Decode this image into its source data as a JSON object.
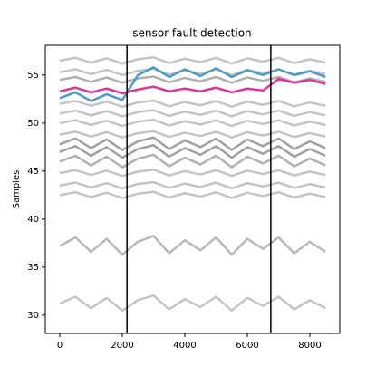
{
  "chart_data": {
    "type": "line",
    "title": "sensor fault detection",
    "y_label": "Samples",
    "x": [
      0,
      500,
      1000,
      1500,
      2000,
      2500,
      3000,
      3500,
      4000,
      4500,
      5000,
      5500,
      6000,
      6500,
      7000,
      7500,
      8000,
      8500
    ],
    "series": [
      {
        "color": "#c4c4c4",
        "values": [
          56.5,
          56.8,
          56.3,
          56.75,
          56.2,
          56.65,
          56.85,
          56.25,
          56.7,
          56.35,
          56.8,
          56.2,
          56.75,
          56.4,
          56.8,
          56.25,
          56.65,
          56.3
        ]
      },
      {
        "color": "#c4c4c4",
        "values": [
          55.3,
          55.6,
          55.1,
          55.55,
          55.0,
          55.45,
          55.65,
          55.05,
          55.5,
          55.15,
          55.6,
          55.0,
          55.55,
          55.2,
          55.6,
          55.05,
          55.45,
          55.1
        ]
      },
      {
        "color": "#b0b0b0",
        "values": [
          54.5,
          54.8,
          54.3,
          54.75,
          54.2,
          54.65,
          54.85,
          54.25,
          54.7,
          54.35,
          54.8,
          54.2,
          54.75,
          54.4,
          54.8,
          54.25,
          54.65,
          54.3
        ]
      },
      {
        "color": "#c4c4c4",
        "values": [
          52.0,
          52.3,
          51.8,
          52.25,
          51.7,
          52.15,
          52.35,
          51.75,
          52.2,
          51.85,
          52.3,
          51.7,
          52.25,
          51.9,
          52.3,
          51.75,
          52.15,
          51.8
        ]
      },
      {
        "color": "#c4c4c4",
        "values": [
          51.0,
          51.3,
          50.8,
          51.25,
          50.7,
          51.15,
          51.35,
          50.75,
          51.2,
          50.85,
          51.3,
          50.7,
          51.25,
          50.9,
          51.3,
          50.75,
          51.15,
          50.8
        ]
      },
      {
        "color": "#c4c4c4",
        "values": [
          50.0,
          50.3,
          49.8,
          50.25,
          49.7,
          50.15,
          50.35,
          49.75,
          50.2,
          49.85,
          50.3,
          49.7,
          50.25,
          49.9,
          50.3,
          49.75,
          50.15,
          49.8
        ]
      },
      {
        "color": "#c4c4c4",
        "values": [
          48.8,
          49.1,
          48.6,
          49.05,
          48.5,
          48.95,
          49.15,
          48.55,
          49.0,
          48.65,
          49.1,
          48.5,
          49.05,
          48.7,
          49.1,
          48.55,
          48.95,
          48.6
        ]
      },
      {
        "color": "#a0a0a0",
        "values": [
          47.8,
          48.4,
          47.4,
          48.3,
          47.2,
          48.1,
          48.5,
          47.3,
          48.2,
          47.5,
          48.4,
          47.2,
          48.3,
          47.6,
          48.4,
          47.3,
          48.1,
          47.4
        ]
      },
      {
        "color": "#a0a0a0",
        "values": [
          47.0,
          47.6,
          46.6,
          47.5,
          46.4,
          47.3,
          47.7,
          46.5,
          47.4,
          46.7,
          47.6,
          46.4,
          47.5,
          46.8,
          47.6,
          46.5,
          47.3,
          46.6
        ]
      },
      {
        "color": "#b0b0b0",
        "values": [
          46.0,
          46.6,
          45.6,
          46.5,
          45.4,
          46.3,
          46.7,
          45.5,
          46.4,
          45.7,
          46.6,
          45.4,
          46.5,
          45.8,
          46.6,
          45.5,
          46.3,
          45.6
        ]
      },
      {
        "color": "#c4c4c4",
        "values": [
          44.8,
          45.1,
          44.6,
          45.05,
          44.5,
          44.95,
          45.15,
          44.55,
          45.0,
          44.65,
          45.1,
          44.5,
          45.05,
          44.7,
          45.1,
          44.55,
          44.95,
          44.6
        ]
      },
      {
        "color": "#c4c4c4",
        "values": [
          43.5,
          43.8,
          43.3,
          43.75,
          43.2,
          43.65,
          43.85,
          43.25,
          43.7,
          43.35,
          43.8,
          43.2,
          43.75,
          43.4,
          43.8,
          43.25,
          43.65,
          43.3
        ]
      },
      {
        "color": "#c4c4c4",
        "values": [
          42.5,
          42.8,
          42.3,
          42.75,
          42.2,
          42.65,
          42.85,
          42.25,
          42.7,
          42.35,
          42.8,
          42.2,
          42.75,
          42.4,
          42.8,
          42.25,
          42.65,
          42.3
        ]
      },
      {
        "color": "#b8b8b8",
        "values": [
          37.2,
          38.1,
          36.6,
          37.95,
          36.3,
          37.65,
          38.25,
          36.45,
          37.8,
          36.75,
          38.1,
          36.3,
          37.95,
          36.9,
          38.1,
          36.45,
          37.65,
          36.6
        ]
      },
      {
        "color": "#c4c4c4",
        "values": [
          31.2,
          31.92,
          30.72,
          31.8,
          30.48,
          31.56,
          32.04,
          30.6,
          31.68,
          30.84,
          31.92,
          30.48,
          31.8,
          30.96,
          31.92,
          30.6,
          31.56,
          30.72
        ]
      },
      {
        "color": "#4c9ac9",
        "values": [
          52.6,
          53.2,
          52.3,
          53.0,
          52.4,
          55.0,
          55.8,
          54.8,
          55.6,
          54.9,
          55.7,
          54.8,
          55.5,
          55.0,
          55.6,
          55.0,
          55.4,
          54.8
        ]
      },
      {
        "color": "#e0309a",
        "values": [
          53.3,
          53.7,
          53.2,
          53.6,
          53.1,
          53.5,
          53.8,
          53.3,
          53.6,
          53.3,
          53.7,
          53.2,
          53.6,
          53.4,
          54.6,
          54.2,
          54.5,
          54.1
        ]
      }
    ],
    "vlines": [
      2150,
      6750
    ],
    "xlim": [
      -464,
      8957
    ],
    "ylim": [
      28.1,
      58.1
    ],
    "xticks": [
      0,
      2000,
      4000,
      6000,
      8000
    ],
    "yticks": [
      30,
      35,
      40,
      45,
      50,
      55
    ]
  }
}
